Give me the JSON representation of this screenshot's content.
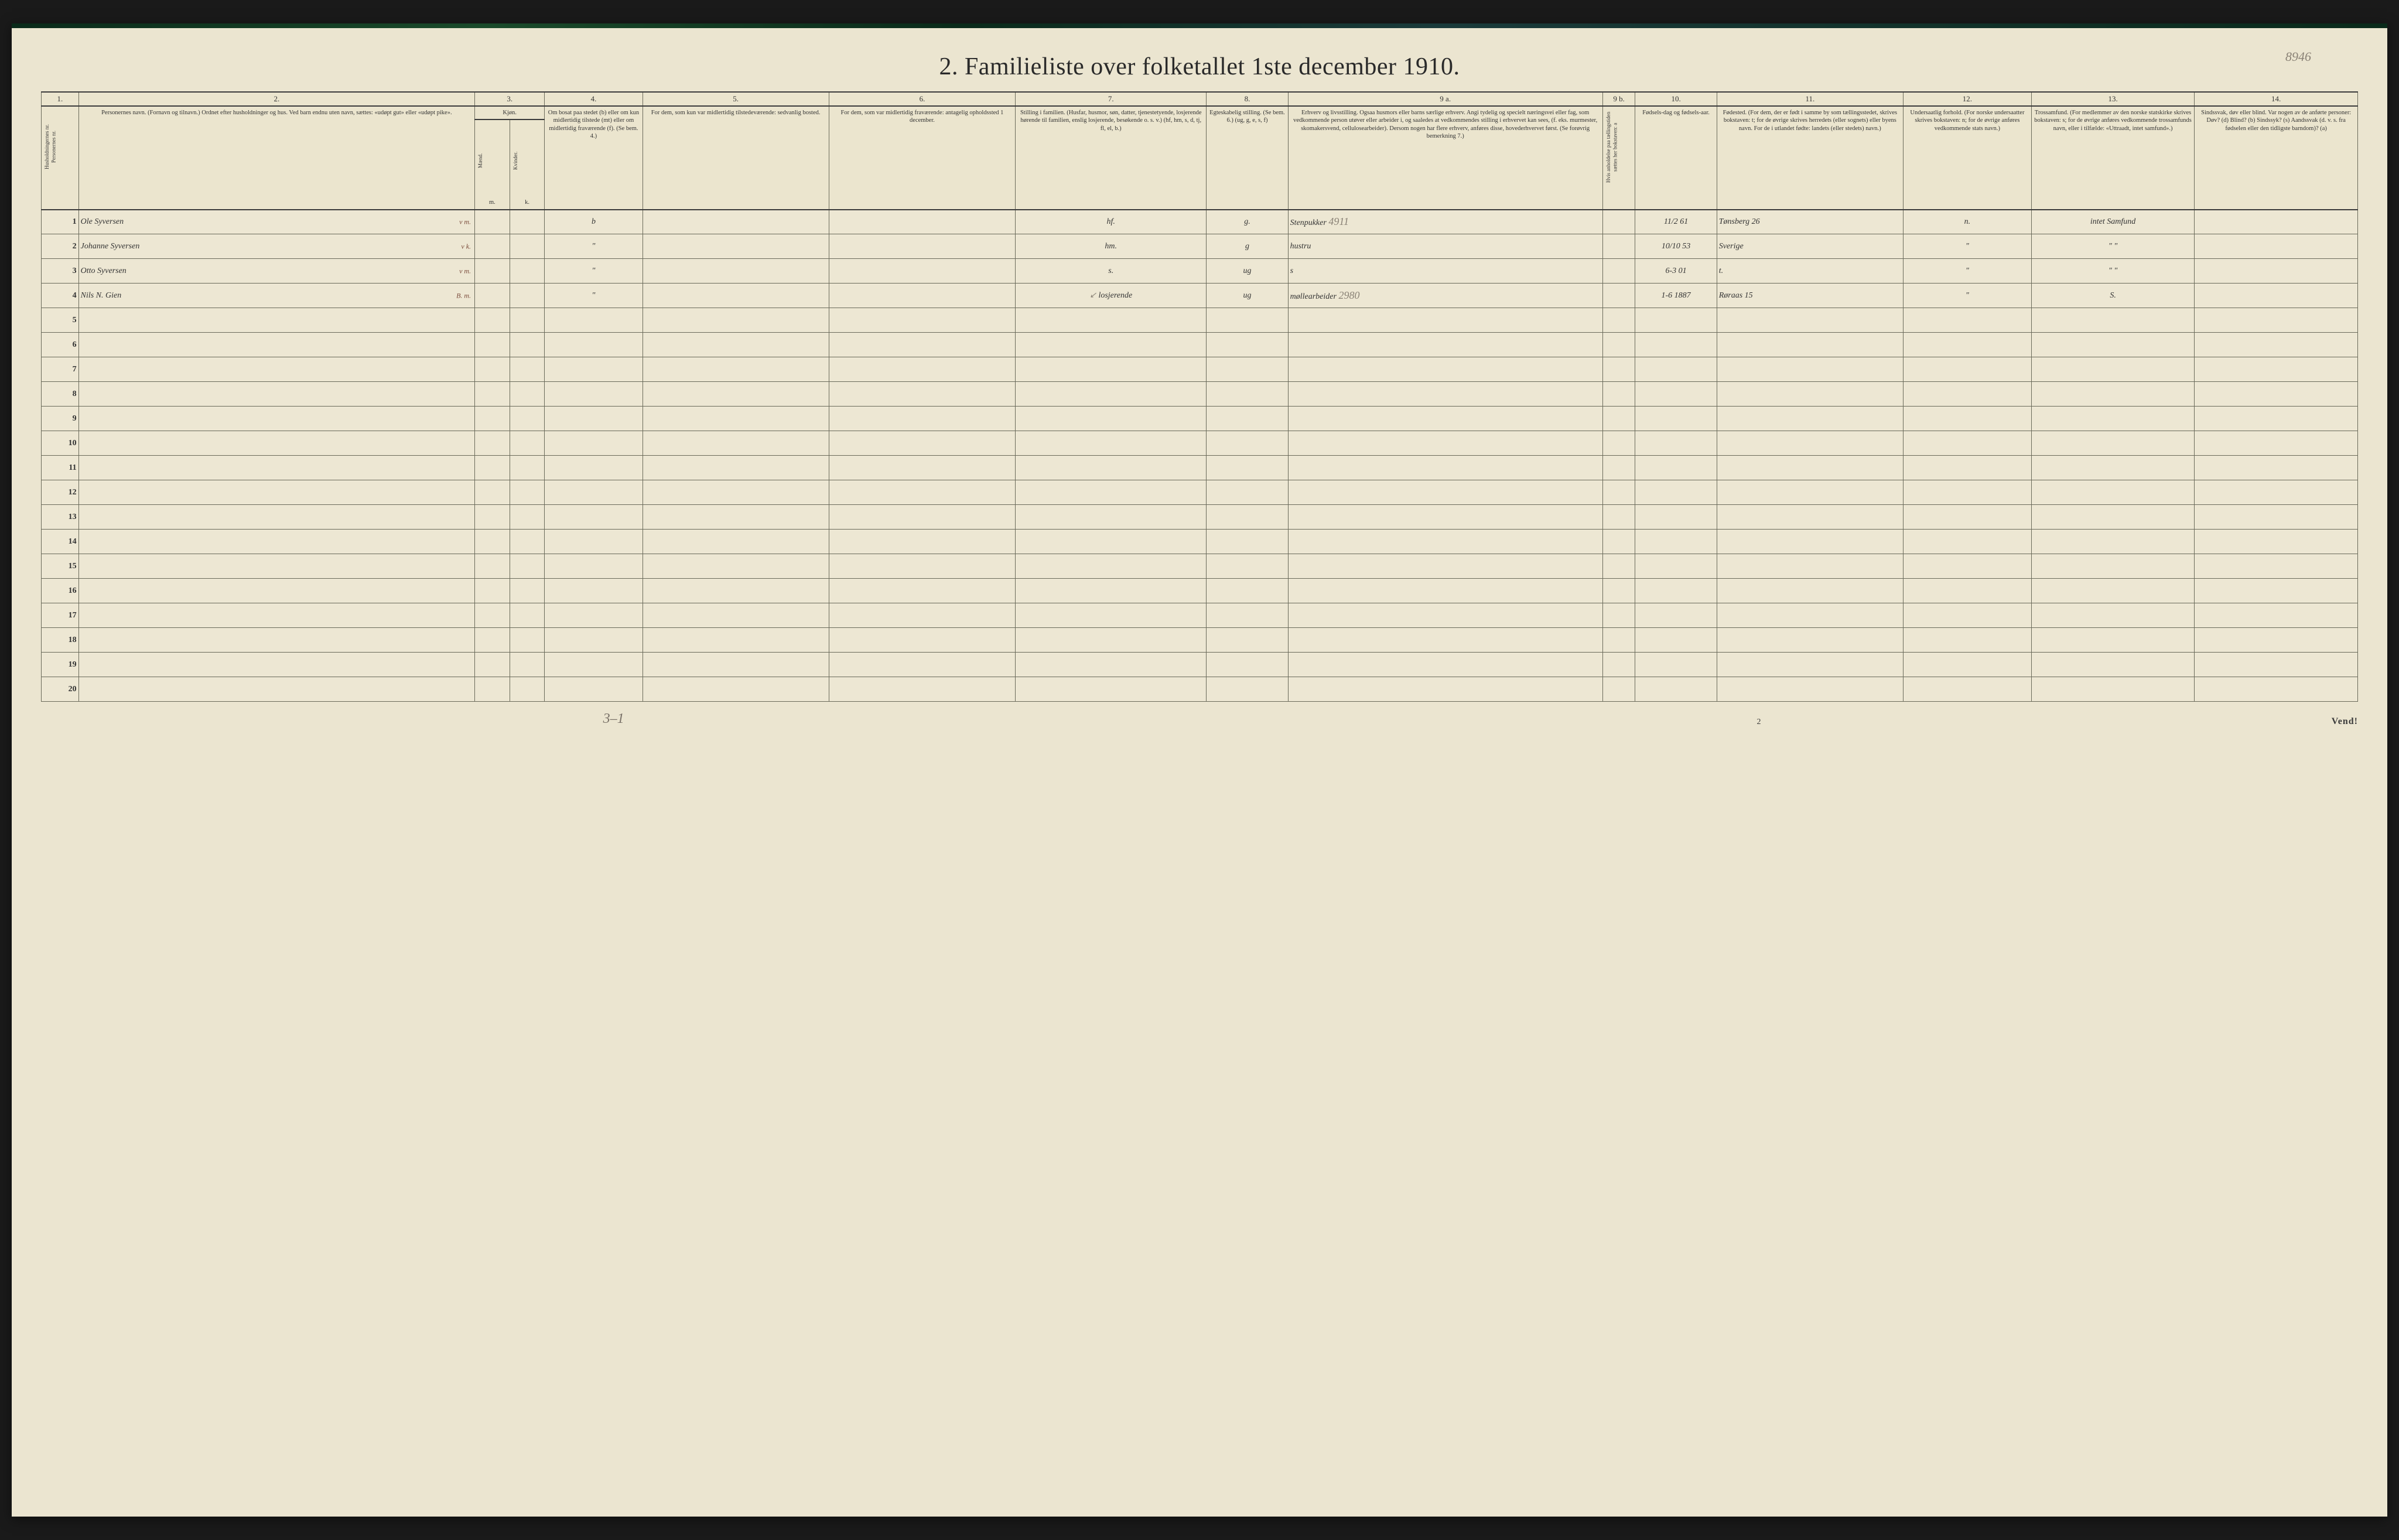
{
  "title": "2.  Familieliste over folketallet 1ste december 1910.",
  "form_number": "8946",
  "columns": {
    "nums": [
      "1.",
      "2.",
      "3.",
      "4.",
      "5.",
      "6.",
      "7.",
      "8.",
      "9 a.",
      "9 b.",
      "10.",
      "11.",
      "12.",
      "13.",
      "14."
    ],
    "kjon": "Kjøn.",
    "mand": "Mænd.",
    "kvinder": "Kvinder.",
    "mk": [
      "m.",
      "k."
    ],
    "c1": "Husholdningernes nr. Personernes nr.",
    "c2": "Personernes navn.\n(Fornavn og tilnavn.)\nOrdnet efter husholdninger og hus.\nVed barn endnu uten navn, sættes: «udøpt gut» eller «udøpt pike».",
    "c4": "Om bosat paa stedet (b) eller om kun midlertidig tilstede (mt) eller om midlertidig fraværende (f). (Se bem. 4.)",
    "c5": "For dem, som kun var midlertidig tilstedeværende:\nsedvanlig bosted.",
    "c6": "For dem, som var midlertidig fraværende:\nantagelig opholdssted 1 december.",
    "c7": "Stilling i familien.\n(Husfar, husmor, søn, datter, tjenestetyende, losjerende hørende til familien, enslig losjerende, besøkende o. s. v.)\n(hf, hm, s, d, tj, fl, el, b.)",
    "c8": "Egteskabelig stilling.\n(Se bem. 6.)\n(ug, g, e, s, f)",
    "c9a": "Erhverv og livsstilling.\nOgsaa husmors eller barns særlige erhverv. Angi tydelig og specielt næringsvei eller fag, som vedkommende person utøver eller arbeider i, og saaledes at vedkommendes stilling i erhvervet kan sees, (f. eks. murmester, skomakersvend, cellulosearbeider). Dersom nogen har flere erhverv, anføres disse, hovederhvervet først.\n(Se forøvrig bemerkning 7.)",
    "c9b": "Hvis anholdelse paa tællingstiden sættes her bokstaven: a",
    "c10": "Fødsels-dag og fødsels-aar.",
    "c11": "Fødested.\n(For dem, der er født i samme by som tællingsstedet, skrives bokstaven: t; for de øvrige skrives herredets (eller sognets) eller byens navn. For de i utlandet fødte: landets (eller stedets) navn.)",
    "c12": "Undersaatlig forhold.\n(For norske undersaatter skrives bokstaven: n; for de øvrige anføres vedkommende stats navn.)",
    "c13": "Trossamfund.\n(For medlemmer av den norske statskirke skrives bokstaven: s; for de øvrige anføres vedkommende trossamfunds navn, eller i tilfælde: «Uttraadt, intet samfund».)",
    "c14": "Sindssvak, døv eller blind.\nVar nogen av de anførte personer:\nDøv? (d)\nBlind? (b)\nSindssyk? (s)\nAandssvak (d. v. s. fra fødselen eller den tidligste barndom)? (a)"
  },
  "rows": [
    {
      "num": "1",
      "name": "Ole Syversen",
      "name_mark": "v m.",
      "sex_m": "",
      "sex_k": "",
      "bosat": "b",
      "c5": "",
      "c6": "",
      "c7": "hf.",
      "c8": "g.",
      "c9a": "Stenpukker",
      "c9a_note": "4911",
      "c10": "11/2 61",
      "c11": "Tønsberg 26",
      "c12": "n.",
      "c13": "intet Samfund",
      "c14": ""
    },
    {
      "num": "2",
      "name": "Johanne Syversen",
      "name_mark": "v k.",
      "bosat": "\"",
      "c7": "hm.",
      "c8": "g",
      "c9a": "hustru",
      "c10": "10/10 53",
      "c11": "Sverige",
      "c12": "\"",
      "c13": "\"   \"",
      "c14": ""
    },
    {
      "num": "3",
      "name": "Otto   Syversen",
      "name_mark": "v m.",
      "bosat": "\"",
      "c7": "s.",
      "c8": "ug",
      "c9a": "s",
      "c10": "6-3 01",
      "c11": "t.",
      "c12": "\"",
      "c13": "\"   \"",
      "c14": ""
    },
    {
      "num": "4",
      "name": "Nils   N. Gien",
      "name_mark": "B. m.",
      "bosat": "\"",
      "c7": "losjerende",
      "c7_mark": "↙",
      "c8": "ug",
      "c9a": "møllearbeider",
      "c9a_note": "2980",
      "c10": "1-6 1887",
      "c11": "Røraas 15",
      "c12": "\"",
      "c13": "S.",
      "c14": ""
    }
  ],
  "empty_rows": [
    "5",
    "6",
    "7",
    "8",
    "9",
    "10",
    "11",
    "12",
    "13",
    "14",
    "15",
    "16",
    "17",
    "18",
    "19",
    "20"
  ],
  "footer": {
    "annotation": "3–1",
    "page": "2",
    "vend": "Vend!"
  },
  "colors": {
    "paper": "#ebe5d0",
    "ink": "#2a2a3a",
    "border": "#6a6a5a",
    "faint": "#8a8276",
    "red": "#b83a2a"
  }
}
